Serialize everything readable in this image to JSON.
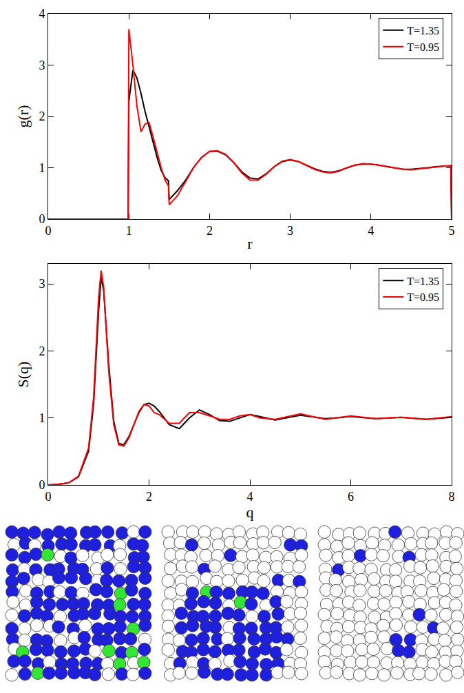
{
  "chart_data": [
    {
      "type": "line",
      "x_label": "r",
      "y_label": "g(r)",
      "x": [
        0,
        0.99,
        1.0,
        1.05,
        1.1,
        1.15,
        1.2,
        1.25,
        1.3,
        1.35,
        1.4,
        1.45,
        1.49,
        1.5,
        1.6,
        1.7,
        1.8,
        1.9,
        2.0,
        2.1,
        2.2,
        2.3,
        2.4,
        2.5,
        2.6,
        2.7,
        2.8,
        2.9,
        3.0,
        3.1,
        3.2,
        3.3,
        3.4,
        3.5,
        3.6,
        3.7,
        3.8,
        3.9,
        4.0,
        4.1,
        4.2,
        4.3,
        4.4,
        4.5,
        4.6,
        4.7,
        4.8,
        4.9,
        4.99,
        5.0
      ],
      "series": [
        {
          "name": "T=1.35",
          "color": "#000000",
          "values": [
            0,
            0,
            2.3,
            2.9,
            2.75,
            2.45,
            2.1,
            1.8,
            1.5,
            1.2,
            0.95,
            0.8,
            0.75,
            0.38,
            0.55,
            0.75,
            1.0,
            1.2,
            1.32,
            1.32,
            1.25,
            1.1,
            0.92,
            0.8,
            0.78,
            0.88,
            1.02,
            1.12,
            1.15,
            1.12,
            1.05,
            0.98,
            0.93,
            0.91,
            0.94,
            1.0,
            1.05,
            1.07,
            1.07,
            1.05,
            1.02,
            0.99,
            0.97,
            0.97,
            0.98,
            1.0,
            1.02,
            1.03,
            1.04,
            0
          ]
        },
        {
          "name": "T=0.95",
          "color": "#ff0000",
          "values": [
            0,
            0,
            3.7,
            3.0,
            2.2,
            1.7,
            1.85,
            1.88,
            1.6,
            1.3,
            1.0,
            0.75,
            0.65,
            0.28,
            0.45,
            0.72,
            1.0,
            1.2,
            1.32,
            1.33,
            1.26,
            1.1,
            0.9,
            0.76,
            0.76,
            0.87,
            1.02,
            1.13,
            1.16,
            1.12,
            1.05,
            0.97,
            0.92,
            0.9,
            0.93,
            1.0,
            1.05,
            1.08,
            1.07,
            1.05,
            1.02,
            0.99,
            0.97,
            0.96,
            0.98,
            1.0,
            1.02,
            1.03,
            1.04,
            0
          ]
        }
      ],
      "xlim": [
        0,
        5
      ],
      "xticks": [
        0,
        1,
        2,
        3,
        4,
        5
      ],
      "ylim": [
        0,
        4
      ],
      "yticks": [
        0,
        1,
        2,
        3,
        4
      ],
      "grid": false,
      "legend": "top right"
    },
    {
      "type": "line",
      "x_label": "q",
      "y_label": "S(q)",
      "x": [
        0,
        0.2,
        0.4,
        0.6,
        0.8,
        0.9,
        1.0,
        1.05,
        1.1,
        1.2,
        1.3,
        1.4,
        1.5,
        1.6,
        1.7,
        1.8,
        1.9,
        2.0,
        2.1,
        2.2,
        2.4,
        2.6,
        2.8,
        3.0,
        3.2,
        3.4,
        3.6,
        3.8,
        4.0,
        4.2,
        4.5,
        5.0,
        5.5,
        6.0,
        6.5,
        7.0,
        7.5,
        8.0
      ],
      "series": [
        {
          "name": "T=1.35",
          "color": "#000000",
          "values": [
            0,
            0.01,
            0.03,
            0.12,
            0.5,
            1.2,
            2.6,
            3.1,
            2.9,
            1.8,
            0.95,
            0.62,
            0.6,
            0.72,
            0.9,
            1.08,
            1.2,
            1.22,
            1.18,
            1.1,
            0.9,
            0.84,
            1.0,
            1.12,
            1.05,
            0.96,
            0.95,
            1.0,
            1.05,
            1.02,
            0.97,
            1.04,
            0.99,
            1.02,
            0.99,
            1.01,
            0.98,
            1.01
          ]
        },
        {
          "name": "T=0.95",
          "color": "#ff0000",
          "values": [
            0,
            0.01,
            0.03,
            0.13,
            0.55,
            1.3,
            2.8,
            3.2,
            2.95,
            1.7,
            0.9,
            0.6,
            0.58,
            0.7,
            0.9,
            1.1,
            1.2,
            1.18,
            1.08,
            1.05,
            0.92,
            0.92,
            1.08,
            1.08,
            1.03,
            0.98,
            0.98,
            1.03,
            1.05,
            1.0,
            0.98,
            1.06,
            0.98,
            1.03,
            0.99,
            1.01,
            0.98,
            1.02
          ]
        }
      ],
      "xlim": [
        0,
        8
      ],
      "xticks": [
        0,
        2,
        4,
        6,
        8
      ],
      "ylim": [
        0,
        3.3
      ],
      "yticks": [
        0,
        1,
        2,
        3
      ],
      "grid": false,
      "legend": "top right"
    }
  ]
}
